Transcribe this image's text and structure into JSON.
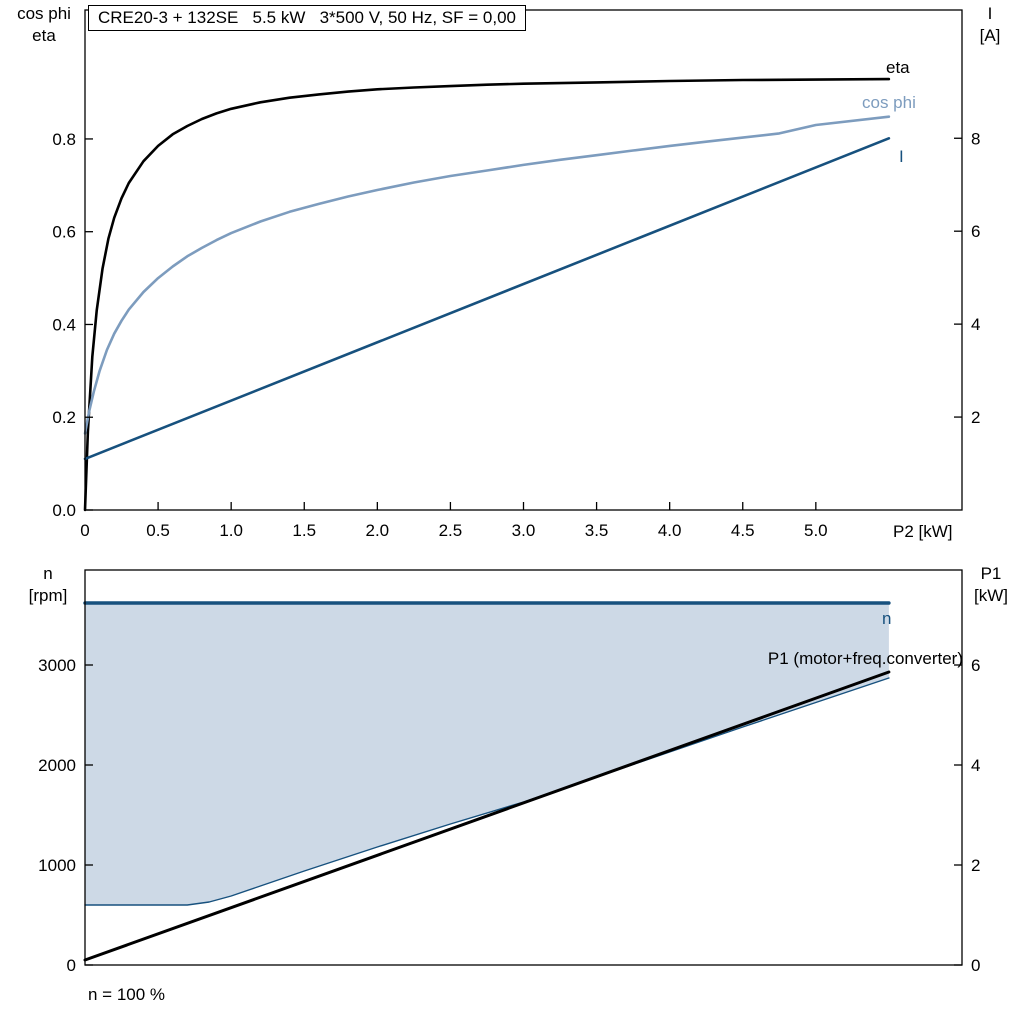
{
  "page": {
    "footnote": "n = 100 %"
  },
  "colors": {
    "eta": "#000000",
    "cos_phi": "#7d9cbe",
    "current": "#17517e",
    "n_line": "#17517e",
    "p1_line": "#000000",
    "area_fill": "#cdd9e6",
    "axis": "#000000"
  },
  "chart_data": [
    {
      "type": "line",
      "title": "CRE20-3 + 132SE   5.5 kW   3*500 V, 50 Hz, SF = 0,00",
      "x_label": "P2 [kW]",
      "y_left_label": [
        "cos phi",
        "eta"
      ],
      "y_right_label": [
        "I",
        "[A]"
      ],
      "x_range": [
        0,
        6.0
      ],
      "y_left_range": [
        0,
        1.078
      ],
      "y_right_range": [
        0,
        10.76
      ],
      "grid": false,
      "x_tick_values": [
        0,
        0.5,
        1.0,
        1.5,
        2.0,
        2.5,
        3.0,
        3.5,
        4.0,
        4.5,
        5.0
      ],
      "x_ticks": [
        "0",
        "0.5",
        "1.0",
        "1.5",
        "2.0",
        "2.5",
        "3.0",
        "3.5",
        "4.0",
        "4.5",
        "5.0"
      ],
      "y_left_tick_values": [
        0,
        0.2,
        0.4,
        0.6,
        0.8
      ],
      "y_left_ticks": [
        "0.0",
        "0.2",
        "0.4",
        "0.6",
        "0.8"
      ],
      "y_right_tick_values": [
        2,
        4,
        6,
        8
      ],
      "y_right_ticks": [
        "2",
        "4",
        "6",
        "8"
      ],
      "series": [
        {
          "id": "eta",
          "name": "eta",
          "axis": "left",
          "color": "#000000",
          "width": 2.6,
          "points": [
            [
              0,
              0
            ],
            [
              0.02,
              0.17
            ],
            [
              0.05,
              0.33
            ],
            [
              0.08,
              0.43
            ],
            [
              0.12,
              0.52
            ],
            [
              0.16,
              0.585
            ],
            [
              0.2,
              0.63
            ],
            [
              0.25,
              0.672
            ],
            [
              0.3,
              0.705
            ],
            [
              0.4,
              0.752
            ],
            [
              0.5,
              0.785
            ],
            [
              0.6,
              0.81
            ],
            [
              0.7,
              0.828
            ],
            [
              0.8,
              0.843
            ],
            [
              0.9,
              0.855
            ],
            [
              1.0,
              0.865
            ],
            [
              1.2,
              0.879
            ],
            [
              1.4,
              0.889
            ],
            [
              1.6,
              0.896
            ],
            [
              1.8,
              0.902
            ],
            [
              2.0,
              0.907
            ],
            [
              2.25,
              0.911
            ],
            [
              2.5,
              0.914
            ],
            [
              2.75,
              0.917
            ],
            [
              3.0,
              0.919
            ],
            [
              3.5,
              0.922
            ],
            [
              4.0,
              0.925
            ],
            [
              4.5,
              0.927
            ],
            [
              5.0,
              0.928
            ],
            [
              5.5,
              0.929
            ]
          ]
        },
        {
          "id": "cos-phi",
          "name": "cos phi",
          "axis": "left",
          "color": "#7d9cbe",
          "width": 2.6,
          "points": [
            [
              0,
              0.165
            ],
            [
              0.03,
              0.215
            ],
            [
              0.06,
              0.255
            ],
            [
              0.1,
              0.3
            ],
            [
              0.15,
              0.345
            ],
            [
              0.2,
              0.38
            ],
            [
              0.25,
              0.408
            ],
            [
              0.3,
              0.432
            ],
            [
              0.4,
              0.47
            ],
            [
              0.5,
              0.5
            ],
            [
              0.6,
              0.525
            ],
            [
              0.7,
              0.547
            ],
            [
              0.8,
              0.565
            ],
            [
              0.9,
              0.582
            ],
            [
              1.0,
              0.597
            ],
            [
              1.2,
              0.622
            ],
            [
              1.4,
              0.643
            ],
            [
              1.6,
              0.66
            ],
            [
              1.8,
              0.676
            ],
            [
              2.0,
              0.69
            ],
            [
              2.25,
              0.706
            ],
            [
              2.5,
              0.72
            ],
            [
              2.75,
              0.732
            ],
            [
              3.0,
              0.744
            ],
            [
              3.25,
              0.755
            ],
            [
              3.5,
              0.765
            ],
            [
              3.75,
              0.775
            ],
            [
              4.0,
              0.785
            ],
            [
              4.25,
              0.794
            ],
            [
              4.5,
              0.803
            ],
            [
              4.75,
              0.812
            ],
            [
              5.0,
              0.83
            ],
            [
              5.5,
              0.848
            ]
          ]
        },
        {
          "id": "current",
          "name": "I",
          "axis": "right",
          "color": "#17517e",
          "width": 2.6,
          "points": [
            [
              0,
              1.1
            ],
            [
              5.5,
              8.0
            ]
          ]
        }
      ]
    },
    {
      "type": "line-area",
      "y_left_label": [
        "n",
        "[rpm]"
      ],
      "y_right_label": [
        "P1",
        "[kW]"
      ],
      "x_range": [
        0,
        6.0
      ],
      "y_left_range": [
        0,
        3950
      ],
      "y_right_range": [
        0,
        7.9
      ],
      "grid": false,
      "x_tick_values": [],
      "x_ticks": [],
      "y_left_tick_values": [
        0,
        1000,
        2000,
        3000
      ],
      "y_left_ticks": [
        "0",
        "1000",
        "2000",
        "3000"
      ],
      "y_right_tick_values": [
        0,
        2,
        4,
        6
      ],
      "y_right_ticks": [
        "0",
        "2",
        "4",
        "6"
      ],
      "footnote": "n = 100 %",
      "area": {
        "upper": 3620,
        "lower_series": "n min",
        "fill": "#cdd9e6"
      },
      "series": [
        {
          "id": "n-max",
          "name": "n",
          "axis": "left",
          "color": "#17517e",
          "width": 3.5,
          "points": [
            [
              0,
              3620
            ],
            [
              5.5,
              3620
            ]
          ]
        },
        {
          "id": "n-min",
          "name": "n min",
          "axis": "left",
          "color": "#17517e",
          "width": 1.4,
          "points": [
            [
              0,
              600
            ],
            [
              0.7,
              600
            ],
            [
              0.85,
              630
            ],
            [
              1.0,
              690
            ],
            [
              1.2,
              790
            ],
            [
              1.5,
              940
            ],
            [
              2.0,
              1180
            ],
            [
              2.5,
              1410
            ],
            [
              3.0,
              1630
            ],
            [
              3.5,
              1880
            ],
            [
              4.0,
              2130
            ],
            [
              4.5,
              2380
            ],
            [
              5.0,
              2625
            ],
            [
              5.5,
              2870
            ]
          ]
        },
        {
          "id": "p1",
          "name": "P1 (motor+freq.converter)",
          "axis": "right",
          "color": "#000000",
          "width": 3,
          "points": [
            [
              0,
              0.1
            ],
            [
              5.5,
              5.86
            ]
          ]
        }
      ]
    }
  ]
}
